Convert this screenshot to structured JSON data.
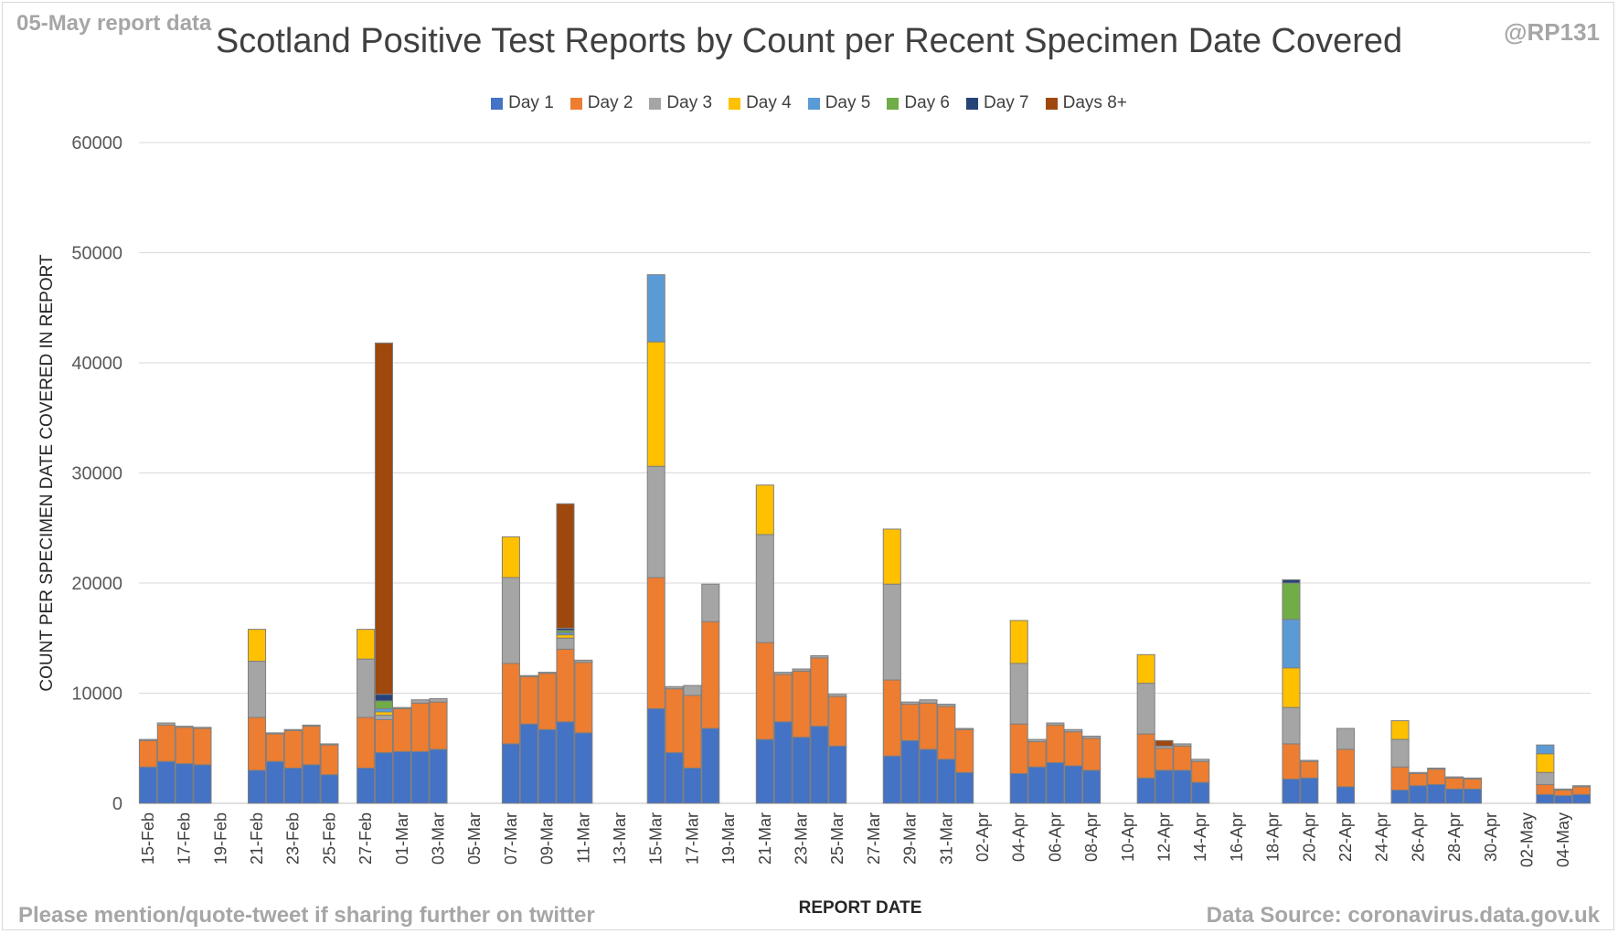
{
  "header": {
    "report_tag": "05-May report data",
    "handle": "@RP131",
    "title": "Scotland Positive Test Reports by Count per Recent Specimen Date Covered"
  },
  "footer": {
    "left": "Please mention/quote-tweet if sharing further on twitter",
    "right": "Data Source: coronavirus.data.gov.uk"
  },
  "chart_data": {
    "type": "bar",
    "stacked": true,
    "title": "Scotland Positive Test Reports by Count per Recent Specimen Date Covered",
    "xlabel": "REPORT DATE",
    "ylabel": "COUNT PER SPECIMEN DATE COVERED IN REPORT",
    "ylim": [
      0,
      60000
    ],
    "yticks": [
      0,
      10000,
      20000,
      30000,
      40000,
      50000,
      60000
    ],
    "grid": true,
    "legend_position": "top",
    "x_tick_labels": [
      "15-Feb",
      "17-Feb",
      "19-Feb",
      "21-Feb",
      "23-Feb",
      "25-Feb",
      "27-Feb",
      "01-Mar",
      "03-Mar",
      "05-Mar",
      "07-Mar",
      "09-Mar",
      "11-Mar",
      "13-Mar",
      "15-Mar",
      "17-Mar",
      "19-Mar",
      "21-Mar",
      "23-Mar",
      "25-Mar",
      "27-Mar",
      "29-Mar",
      "31-Mar",
      "02-Apr",
      "04-Apr",
      "06-Apr",
      "08-Apr",
      "10-Apr",
      "12-Apr",
      "14-Apr",
      "16-Apr",
      "18-Apr",
      "20-Apr",
      "22-Apr",
      "24-Apr",
      "26-Apr",
      "28-Apr",
      "30-Apr",
      "02-May",
      "04-May"
    ],
    "series_names": [
      "Day 1",
      "Day 2",
      "Day 3",
      "Day 4",
      "Day 5",
      "Day 6",
      "Day 7",
      "Days 8+"
    ],
    "series_colors": [
      "#4472c4",
      "#ed7d31",
      "#a5a5a5",
      "#ffc000",
      "#5b9bd5",
      "#70ad47",
      "#264478",
      "#9e480e"
    ],
    "categories": [
      "15-Feb",
      "16-Feb",
      "17-Feb",
      "18-Feb",
      "19-Feb",
      "20-Feb",
      "21-Feb",
      "22-Feb",
      "23-Feb",
      "24-Feb",
      "25-Feb",
      "26-Feb",
      "27-Feb",
      "28-Feb",
      "01-Mar",
      "02-Mar",
      "03-Mar",
      "04-Mar",
      "05-Mar",
      "06-Mar",
      "07-Mar",
      "08-Mar",
      "09-Mar",
      "10-Mar",
      "11-Mar",
      "12-Mar",
      "13-Mar",
      "14-Mar",
      "15-Mar",
      "16-Mar",
      "17-Mar",
      "18-Mar",
      "19-Mar",
      "20-Mar",
      "21-Mar",
      "22-Mar",
      "23-Mar",
      "24-Mar",
      "25-Mar",
      "26-Mar",
      "27-Mar",
      "28-Mar",
      "29-Mar",
      "30-Mar",
      "31-Mar",
      "01-Apr",
      "02-Apr",
      "03-Apr",
      "04-Apr",
      "05-Apr",
      "06-Apr",
      "07-Apr",
      "08-Apr",
      "09-Apr",
      "10-Apr",
      "11-Apr",
      "12-Apr",
      "13-Apr",
      "14-Apr",
      "15-Apr",
      "16-Apr",
      "17-Apr",
      "18-Apr",
      "19-Apr",
      "20-Apr",
      "21-Apr",
      "22-Apr",
      "23-Apr",
      "24-Apr",
      "25-Apr",
      "26-Apr",
      "27-Apr",
      "28-Apr",
      "29-Apr",
      "30-Apr",
      "01-May",
      "02-May",
      "03-May",
      "04-May",
      "05-May"
    ],
    "values": {
      "Day 1": [
        3300,
        3800,
        3600,
        3500,
        0,
        0,
        3000,
        3800,
        3200,
        3500,
        2600,
        0,
        3200,
        4600,
        4700,
        4700,
        4900,
        0,
        0,
        0,
        5400,
        7200,
        6700,
        7400,
        6400,
        0,
        0,
        0,
        8600,
        4600,
        3200,
        6800,
        0,
        0,
        5800,
        7400,
        6000,
        7000,
        5200,
        0,
        0,
        4300,
        5700,
        4900,
        4000,
        2800,
        0,
        0,
        2700,
        3300,
        3700,
        3400,
        3000,
        0,
        0,
        2300,
        3000,
        3000,
        1900,
        0,
        0,
        0,
        0,
        2200,
        2300,
        0,
        1500,
        0,
        0,
        1200,
        1600,
        1700,
        1300,
        1300,
        0,
        0,
        0,
        800,
        700,
        800
      ],
      "Day 2": [
        2400,
        3300,
        3300,
        3300,
        0,
        0,
        4800,
        2500,
        3400,
        3500,
        2700,
        0,
        4600,
        3000,
        3900,
        4400,
        4300,
        0,
        0,
        0,
        7300,
        4300,
        5100,
        6600,
        6400,
        0,
        0,
        0,
        11900,
        5800,
        6600,
        9700,
        0,
        0,
        8800,
        4300,
        6000,
        6200,
        4500,
        0,
        0,
        6900,
        3300,
        4200,
        4800,
        3900,
        0,
        0,
        4500,
        2300,
        3400,
        3100,
        2900,
        0,
        0,
        4000,
        2000,
        2200,
        1900,
        0,
        0,
        0,
        0,
        3200,
        1500,
        0,
        3400,
        0,
        0,
        2100,
        1100,
        1400,
        1000,
        900,
        0,
        0,
        0,
        900,
        500,
        700
      ],
      "Day 3": [
        100,
        200,
        100,
        100,
        0,
        0,
        5100,
        100,
        100,
        100,
        100,
        0,
        5300,
        400,
        100,
        300,
        300,
        0,
        0,
        0,
        7800,
        100,
        100,
        1000,
        200,
        0,
        0,
        0,
        10100,
        200,
        900,
        3400,
        0,
        0,
        9800,
        200,
        200,
        200,
        200,
        0,
        0,
        8700,
        200,
        300,
        200,
        100,
        0,
        0,
        5500,
        200,
        200,
        200,
        200,
        0,
        0,
        4600,
        200,
        200,
        200,
        0,
        0,
        0,
        0,
        3300,
        100,
        0,
        1900,
        0,
        0,
        2500,
        100,
        100,
        100,
        100,
        0,
        0,
        0,
        1100,
        100,
        100
      ],
      "Day 4": [
        0,
        0,
        0,
        0,
        0,
        0,
        2900,
        0,
        0,
        0,
        0,
        0,
        2700,
        300,
        0,
        0,
        0,
        0,
        0,
        0,
        3700,
        0,
        0,
        300,
        0,
        0,
        0,
        0,
        11300,
        0,
        0,
        0,
        0,
        0,
        4500,
        0,
        0,
        0,
        0,
        0,
        0,
        5000,
        0,
        0,
        0,
        0,
        0,
        0,
        3900,
        0,
        0,
        0,
        0,
        0,
        0,
        2600,
        0,
        0,
        0,
        0,
        0,
        0,
        0,
        3600,
        0,
        0,
        0,
        0,
        0,
        1700,
        0,
        0,
        0,
        0,
        0,
        0,
        0,
        1700,
        0,
        0
      ],
      "Day 5": [
        0,
        0,
        0,
        0,
        0,
        0,
        0,
        0,
        0,
        0,
        0,
        0,
        0,
        300,
        0,
        0,
        0,
        0,
        0,
        0,
        0,
        0,
        0,
        200,
        0,
        0,
        0,
        0,
        6100,
        0,
        0,
        0,
        0,
        0,
        0,
        0,
        0,
        0,
        0,
        0,
        0,
        0,
        0,
        0,
        0,
        0,
        0,
        0,
        0,
        0,
        0,
        0,
        0,
        0,
        0,
        0,
        0,
        0,
        0,
        0,
        0,
        0,
        0,
        4400,
        0,
        0,
        0,
        0,
        0,
        0,
        0,
        0,
        0,
        0,
        0,
        0,
        0,
        800,
        0,
        0
      ],
      "Day 6": [
        0,
        0,
        0,
        0,
        0,
        0,
        0,
        0,
        0,
        0,
        0,
        0,
        0,
        700,
        0,
        0,
        0,
        0,
        0,
        0,
        0,
        0,
        0,
        200,
        0,
        0,
        0,
        0,
        0,
        0,
        0,
        0,
        0,
        0,
        0,
        0,
        0,
        0,
        0,
        0,
        0,
        0,
        0,
        0,
        0,
        0,
        0,
        0,
        0,
        0,
        0,
        0,
        0,
        0,
        0,
        0,
        0,
        0,
        0,
        0,
        0,
        0,
        0,
        3300,
        0,
        0,
        0,
        0,
        0,
        0,
        0,
        0,
        0,
        0,
        0,
        0,
        0,
        0,
        0,
        0
      ],
      "Day 7": [
        0,
        0,
        0,
        0,
        0,
        0,
        0,
        0,
        0,
        0,
        0,
        0,
        0,
        600,
        0,
        0,
        0,
        0,
        0,
        0,
        0,
        0,
        0,
        200,
        0,
        0,
        0,
        0,
        0,
        0,
        0,
        0,
        0,
        0,
        0,
        0,
        0,
        0,
        0,
        0,
        0,
        0,
        0,
        0,
        0,
        0,
        0,
        0,
        0,
        0,
        0,
        0,
        0,
        0,
        0,
        0,
        0,
        0,
        0,
        0,
        0,
        0,
        0,
        300,
        0,
        0,
        0,
        0,
        0,
        0,
        0,
        0,
        0,
        0,
        0,
        0,
        0,
        0,
        0,
        0
      ],
      "Days 8+": [
        0,
        0,
        0,
        0,
        0,
        0,
        0,
        0,
        0,
        0,
        0,
        0,
        0,
        31900,
        0,
        0,
        0,
        0,
        0,
        0,
        0,
        0,
        0,
        11300,
        0,
        0,
        0,
        0,
        0,
        0,
        0,
        0,
        0,
        0,
        0,
        0,
        0,
        0,
        0,
        0,
        0,
        0,
        0,
        0,
        0,
        0,
        0,
        0,
        0,
        0,
        0,
        0,
        0,
        0,
        0,
        0,
        500,
        0,
        0,
        0,
        0,
        0,
        0,
        0,
        0,
        0,
        0,
        0,
        0,
        0,
        0,
        0,
        0,
        0,
        0,
        0,
        0,
        0,
        0,
        0
      ]
    }
  }
}
